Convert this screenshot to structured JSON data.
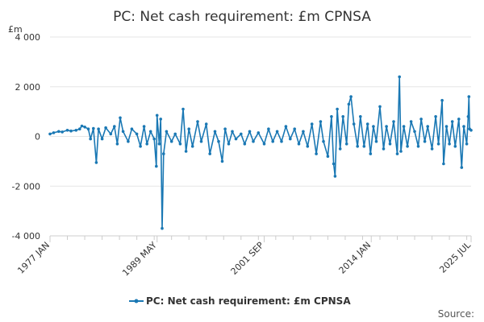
{
  "chart_data": {
    "type": "line",
    "title": "PC: Net cash requirement: £m CPNSA",
    "unit_label": "£m",
    "source_label": "Source:",
    "legend_position": "bottom",
    "grid": true,
    "ylim": [
      -4000,
      4000
    ],
    "y_ticks": [
      {
        "value": 4000,
        "label": "4 000"
      },
      {
        "value": 2000,
        "label": "2 000"
      },
      {
        "value": 0,
        "label": "0"
      },
      {
        "value": -2000,
        "label": "-2 000"
      },
      {
        "value": -4000,
        "label": "-4 000"
      }
    ],
    "x_ticks": [
      {
        "date": "1977-01",
        "label": "1977 JAN"
      },
      {
        "date": "1989-05",
        "label": "1989 MAY"
      },
      {
        "date": "2001-09",
        "label": "2001 SEP"
      },
      {
        "date": "2014-01",
        "label": "2014 JAN"
      },
      {
        "date": "2025-07",
        "label": "2025 JUL"
      }
    ],
    "x_range": [
      "1977-01",
      "2025-07"
    ],
    "colors": {
      "series": "#1a78b4",
      "grid": "#e6e6e6",
      "axis": "#cccccc",
      "text": "#333333"
    },
    "series": [
      {
        "name": "PC: Net cash requirement: £m CPNSA",
        "points": [
          [
            "1977-01",
            100
          ],
          [
            "1977-06",
            150
          ],
          [
            "1978-01",
            200
          ],
          [
            "1978-06",
            180
          ],
          [
            "1979-01",
            250
          ],
          [
            "1979-06",
            220
          ],
          [
            "1980-01",
            250
          ],
          [
            "1980-06",
            300
          ],
          [
            "1980-09",
            420
          ],
          [
            "1981-01",
            380
          ],
          [
            "1981-06",
            300
          ],
          [
            "1981-09",
            -100
          ],
          [
            "1982-01",
            320
          ],
          [
            "1982-05",
            -1050
          ],
          [
            "1982-08",
            300
          ],
          [
            "1983-01",
            -100
          ],
          [
            "1983-06",
            350
          ],
          [
            "1984-01",
            100
          ],
          [
            "1984-06",
            400
          ],
          [
            "1984-10",
            -300
          ],
          [
            "1985-02",
            750
          ],
          [
            "1985-06",
            200
          ],
          [
            "1986-01",
            -200
          ],
          [
            "1986-06",
            300
          ],
          [
            "1987-01",
            100
          ],
          [
            "1987-06",
            -400
          ],
          [
            "1987-11",
            400
          ],
          [
            "1988-03",
            -300
          ],
          [
            "1988-08",
            200
          ],
          [
            "1989-01",
            -100
          ],
          [
            "1989-04",
            -1200
          ],
          [
            "1989-05",
            850
          ],
          [
            "1989-08",
            -300
          ],
          [
            "1989-10",
            700
          ],
          [
            "1989-12",
            -3700
          ],
          [
            "1990-02",
            -700
          ],
          [
            "1990-06",
            200
          ],
          [
            "1991-01",
            -200
          ],
          [
            "1991-06",
            100
          ],
          [
            "1992-01",
            -300
          ],
          [
            "1992-05",
            1100
          ],
          [
            "1992-09",
            -600
          ],
          [
            "1993-01",
            300
          ],
          [
            "1993-06",
            -400
          ],
          [
            "1994-01",
            600
          ],
          [
            "1994-06",
            -200
          ],
          [
            "1995-01",
            500
          ],
          [
            "1995-06",
            -700
          ],
          [
            "1996-01",
            200
          ],
          [
            "1996-06",
            -200
          ],
          [
            "1996-11",
            -1000
          ],
          [
            "1997-03",
            300
          ],
          [
            "1997-08",
            -300
          ],
          [
            "1998-01",
            200
          ],
          [
            "1998-06",
            -100
          ],
          [
            "1999-01",
            100
          ],
          [
            "1999-06",
            -300
          ],
          [
            "2000-01",
            200
          ],
          [
            "2000-06",
            -200
          ],
          [
            "2001-01",
            150
          ],
          [
            "2001-09",
            -300
          ],
          [
            "2002-03",
            300
          ],
          [
            "2002-09",
            -200
          ],
          [
            "2003-03",
            200
          ],
          [
            "2003-09",
            -200
          ],
          [
            "2004-03",
            400
          ],
          [
            "2004-09",
            -100
          ],
          [
            "2005-03",
            300
          ],
          [
            "2005-09",
            -300
          ],
          [
            "2006-03",
            200
          ],
          [
            "2006-09",
            -400
          ],
          [
            "2007-03",
            500
          ],
          [
            "2007-09",
            -700
          ],
          [
            "2008-03",
            600
          ],
          [
            "2008-07",
            -200
          ],
          [
            "2009-01",
            -800
          ],
          [
            "2009-06",
            800
          ],
          [
            "2009-09",
            -1100
          ],
          [
            "2009-11",
            -1600
          ],
          [
            "2010-02",
            1100
          ],
          [
            "2010-06",
            -500
          ],
          [
            "2010-10",
            800
          ],
          [
            "2011-03",
            -300
          ],
          [
            "2011-06",
            1300
          ],
          [
            "2011-09",
            1600
          ],
          [
            "2012-01",
            500
          ],
          [
            "2012-06",
            -400
          ],
          [
            "2012-10",
            800
          ],
          [
            "2013-03",
            -400
          ],
          [
            "2013-08",
            500
          ],
          [
            "2013-12",
            -700
          ],
          [
            "2014-04",
            400
          ],
          [
            "2014-08",
            -200
          ],
          [
            "2015-01",
            1200
          ],
          [
            "2015-06",
            -500
          ],
          [
            "2015-10",
            400
          ],
          [
            "2016-03",
            -300
          ],
          [
            "2016-08",
            600
          ],
          [
            "2017-01",
            -700
          ],
          [
            "2017-04",
            2400
          ],
          [
            "2017-06",
            -600
          ],
          [
            "2017-10",
            400
          ],
          [
            "2018-03",
            -400
          ],
          [
            "2018-08",
            600
          ],
          [
            "2019-01",
            200
          ],
          [
            "2019-06",
            -400
          ],
          [
            "2019-10",
            700
          ],
          [
            "2020-03",
            -200
          ],
          [
            "2020-07",
            400
          ],
          [
            "2021-01",
            -500
          ],
          [
            "2021-06",
            800
          ],
          [
            "2021-10",
            -300
          ],
          [
            "2022-03",
            1450
          ],
          [
            "2022-05",
            -1100
          ],
          [
            "2022-09",
            400
          ],
          [
            "2023-01",
            -300
          ],
          [
            "2023-05",
            600
          ],
          [
            "2023-09",
            -400
          ],
          [
            "2024-02",
            700
          ],
          [
            "2024-06",
            -1250
          ],
          [
            "2024-09",
            400
          ],
          [
            "2025-01",
            -300
          ],
          [
            "2025-03",
            800
          ],
          [
            "2025-04",
            1600
          ],
          [
            "2025-05",
            300
          ],
          [
            "2025-07",
            250
          ]
        ]
      }
    ]
  }
}
